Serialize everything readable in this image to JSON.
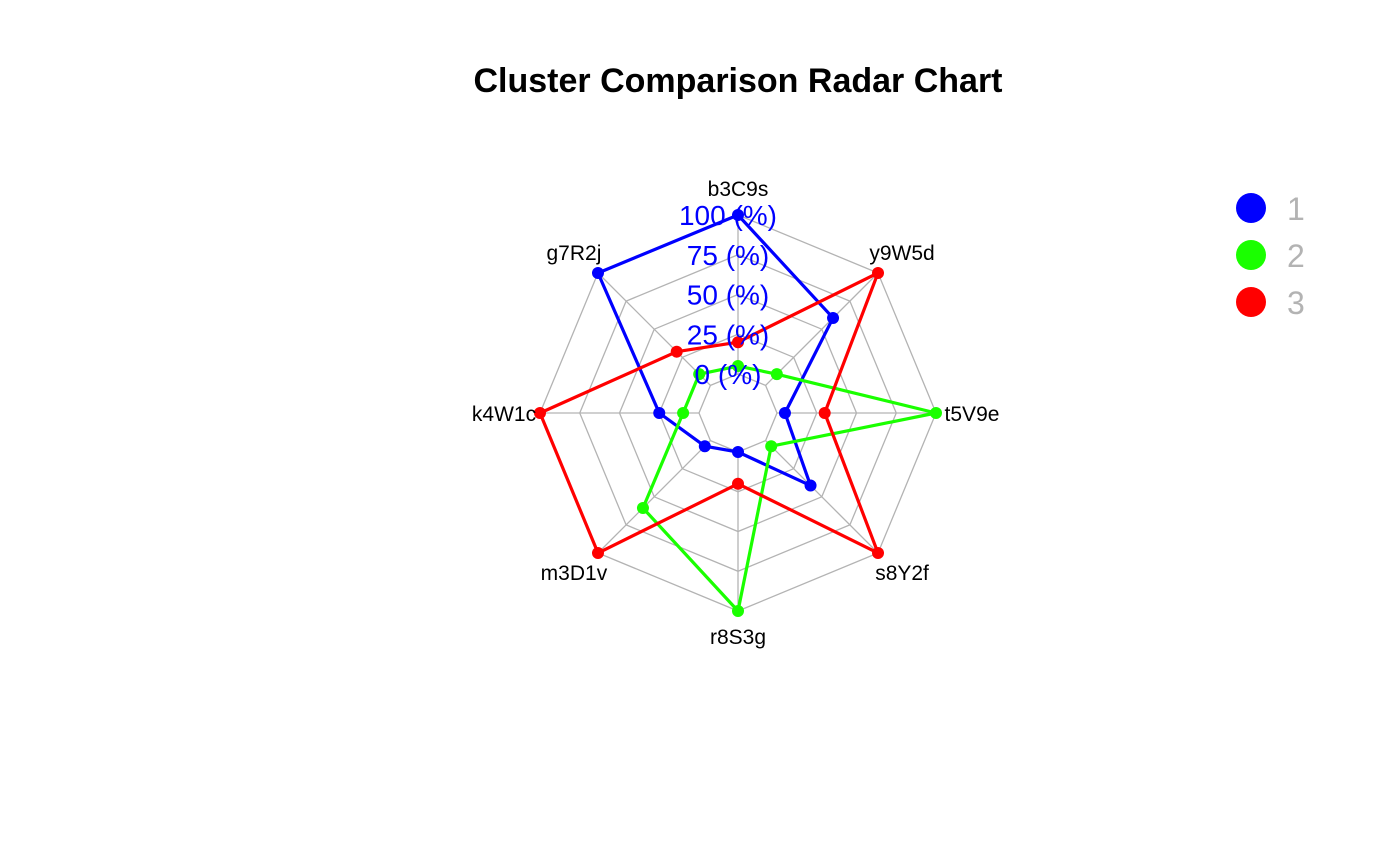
{
  "chart_data": {
    "type": "radar",
    "title": "Cluster Comparison Radar Chart",
    "axes": [
      "b3C9s",
      "y9W5d",
      "t5V9e",
      "s8Y2f",
      "r8S3g",
      "m3D1v",
      "k4W1c",
      "g7R2j"
    ],
    "range": [
      0,
      100
    ],
    "grid_levels": [
      0,
      25,
      50,
      75,
      100
    ],
    "tick_labels": [
      "0 (%)",
      "25 (%)",
      "50 (%)",
      "75 (%)",
      "100 (%)"
    ],
    "tick_color": "#0000ff",
    "grid_color": "#b3b3b3",
    "legend_position": "top-right",
    "series": [
      {
        "name": "1",
        "color": "#0000ff",
        "values": [
          100,
          60,
          5,
          40,
          0,
          5,
          25,
          100
        ]
      },
      {
        "name": "2",
        "color": "#1aff00",
        "values": [
          5,
          10,
          100,
          5,
          100,
          60,
          10,
          10
        ]
      },
      {
        "name": "3",
        "color": "#ff0000",
        "values": [
          20,
          100,
          30,
          100,
          20,
          100,
          100,
          30
        ]
      }
    ]
  }
}
